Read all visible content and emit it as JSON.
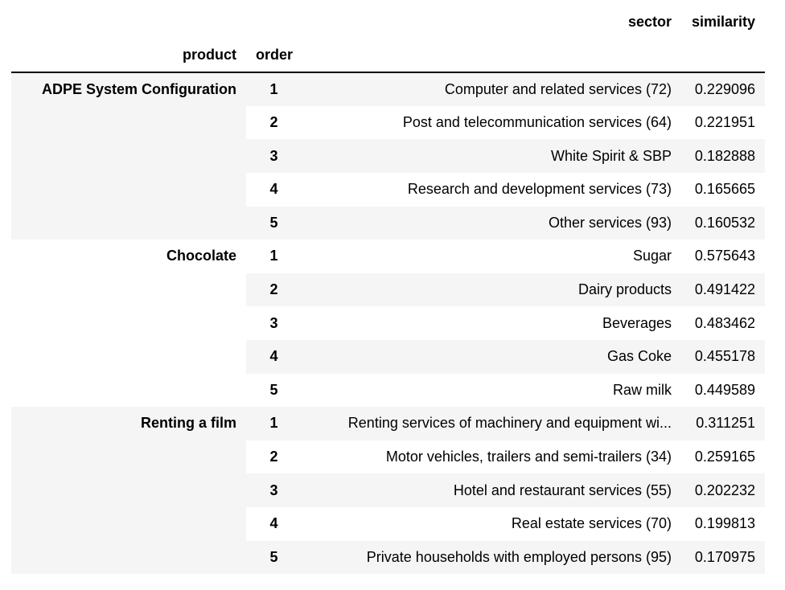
{
  "colors": {
    "stripe": "#f5f5f5",
    "header_border": "#000000",
    "text": "#000000",
    "page_background": "#ffffff"
  },
  "chart_data": {
    "type": "table",
    "index_names": [
      "product",
      "order"
    ],
    "column_names": [
      "sector",
      "similarity"
    ],
    "groups": [
      {
        "product": "ADPE System Configuration",
        "rows": [
          {
            "order": "1",
            "sector": "Computer and related services (72)",
            "similarity": "0.229096"
          },
          {
            "order": "2",
            "sector": "Post and telecommunication services (64)",
            "similarity": "0.221951"
          },
          {
            "order": "3",
            "sector": "White Spirit & SBP",
            "similarity": "0.182888"
          },
          {
            "order": "4",
            "sector": "Research and development services (73)",
            "similarity": "0.165665"
          },
          {
            "order": "5",
            "sector": "Other services (93)",
            "similarity": "0.160532"
          }
        ]
      },
      {
        "product": "Chocolate",
        "rows": [
          {
            "order": "1",
            "sector": "Sugar",
            "similarity": "0.575643"
          },
          {
            "order": "2",
            "sector": "Dairy products",
            "similarity": "0.491422"
          },
          {
            "order": "3",
            "sector": "Beverages",
            "similarity": "0.483462"
          },
          {
            "order": "4",
            "sector": "Gas Coke",
            "similarity": "0.455178"
          },
          {
            "order": "5",
            "sector": "Raw milk",
            "similarity": "0.449589"
          }
        ]
      },
      {
        "product": "Renting a film",
        "rows": [
          {
            "order": "1",
            "sector": "Renting services of machinery and equipment wi...",
            "similarity": "0.311251"
          },
          {
            "order": "2",
            "sector": "Motor vehicles, trailers and semi-trailers (34)",
            "similarity": "0.259165"
          },
          {
            "order": "3",
            "sector": "Hotel and restaurant services (55)",
            "similarity": "0.202232"
          },
          {
            "order": "4",
            "sector": "Real estate services (70)",
            "similarity": "0.199813"
          },
          {
            "order": "5",
            "sector": "Private households with employed persons (95)",
            "similarity": "0.170975"
          }
        ]
      }
    ]
  }
}
